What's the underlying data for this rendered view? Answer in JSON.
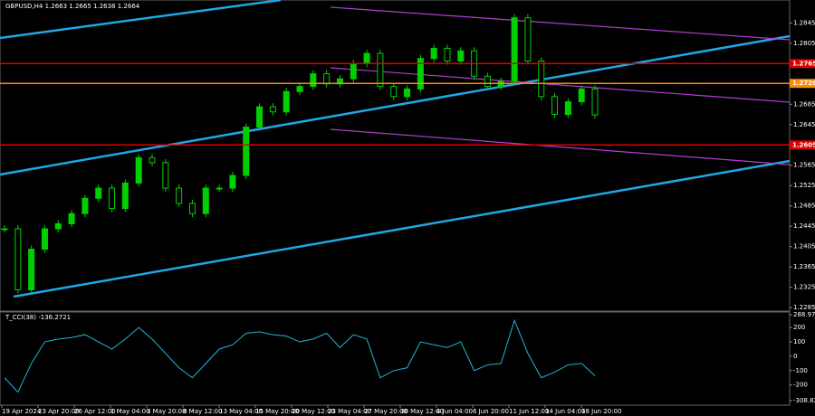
{
  "header": {
    "symbol": "GBPUSD,H4  1.2663 1.2665 1.2638 1.2664",
    "indicator": "T_CCI(38) -136.2721"
  },
  "x_axis": {
    "labels": [
      "19 Apr 2024",
      "23 Apr 20:00",
      "26 Apr 12:00",
      "1 May 04:00",
      "3 May 20:00",
      "8 May 12:00",
      "13 May 04:00",
      "15 May 20:00",
      "20 May 12:00",
      "23 May 04:00",
      "27 May 20:00",
      "30 May 12:00",
      "4 Jun 04:00",
      "6 Jun 20:00",
      "11 Jun 12:00",
      "14 Jun 04:00",
      "18 Jun 20:00"
    ]
  },
  "chart_data": [
    {
      "type": "candlestick",
      "color": "#00d000",
      "values": [
        1.244,
        1.232,
        1.24,
        1.244,
        1.245,
        1.247,
        1.25,
        1.252,
        1.248,
        1.253,
        1.258,
        1.257,
        1.252,
        1.249,
        1.247,
        1.252,
        1.252,
        1.2545,
        1.264,
        1.268,
        1.267,
        1.271,
        1.272,
        1.2745,
        1.2725,
        1.2735,
        1.2765,
        1.2785,
        1.272,
        1.27,
        1.2715,
        1.2775,
        1.2795,
        1.277,
        1.279,
        1.274,
        1.272,
        1.273,
        1.2855,
        1.277,
        1.27,
        1.2665,
        1.269,
        1.2715,
        1.2664
      ],
      "ylim": [
        1.228,
        1.289
      ],
      "yticks": [
        1.2285,
        1.2325,
        1.2365,
        1.2405,
        1.2445,
        1.2485,
        1.2525,
        1.2565,
        1.2605,
        1.2645,
        1.2685,
        1.2765,
        1.2805,
        1.2845
      ],
      "levels": [
        {
          "value": 1.2726,
          "color": "#ff8c00"
        },
        {
          "value": 1.2605,
          "color": "#e00000"
        },
        {
          "value": 1.2765,
          "color": "#e00000"
        }
      ]
    },
    {
      "type": "line",
      "color": "#1fb6d6",
      "values": [
        -150,
        -250,
        -50,
        100,
        120,
        130,
        150,
        100,
        50,
        120,
        200,
        120,
        20,
        -80,
        -150,
        -50,
        50,
        80,
        160,
        170,
        150,
        140,
        100,
        120,
        160,
        60,
        150,
        120,
        -150,
        -100,
        -80,
        100,
        80,
        60,
        100,
        -100,
        -60,
        -50,
        250,
        20,
        -150,
        -110,
        -60,
        -50,
        -136
      ],
      "ylim": [
        -308.8227,
        288.9767
      ],
      "yticks": [
        288.9767,
        200,
        100,
        0,
        -100,
        -200,
        -308.8227
      ]
    }
  ]
}
